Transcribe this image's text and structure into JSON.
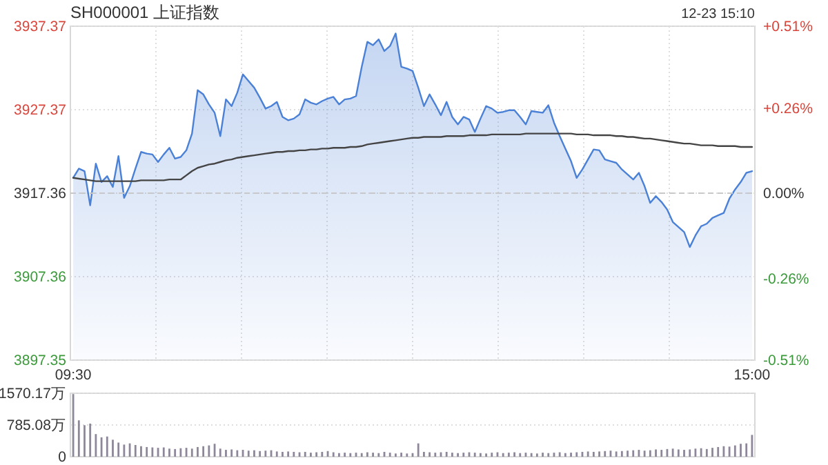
{
  "chart_data": [
    {
      "type": "area",
      "title": "SH000001 上证指数",
      "annotations": [
        "12-23 15:10"
      ],
      "categories": [
        "09:30",
        null,
        null,
        null,
        null,
        null,
        null,
        null,
        null,
        null,
        null,
        null,
        null,
        null,
        null,
        null,
        null,
        null,
        null,
        null,
        null,
        null,
        null,
        null,
        null,
        null,
        null,
        null,
        null,
        null,
        null,
        null,
        null,
        null,
        null,
        null,
        null,
        null,
        null,
        null,
        null,
        null,
        null,
        null,
        null,
        null,
        null,
        null,
        null,
        null,
        null,
        null,
        null,
        null,
        null,
        null,
        null,
        null,
        null,
        null,
        null,
        null,
        null,
        null,
        null,
        null,
        null,
        null,
        null,
        null,
        null,
        null,
        null,
        null,
        null,
        null,
        null,
        null,
        null,
        null,
        null,
        null,
        null,
        null,
        null,
        null,
        null,
        null,
        null,
        null,
        null,
        null,
        null,
        null,
        null,
        null,
        null,
        null,
        null,
        null,
        null,
        null,
        null,
        null,
        null,
        null,
        null,
        null,
        null,
        null,
        null,
        null,
        null,
        null,
        null,
        null,
        null,
        null,
        null,
        null,
        "15:00"
      ],
      "ylim": [
        3897.35,
        3937.37
      ],
      "yticks": [
        3897.35,
        3907.36,
        3917.36,
        3927.37,
        3937.37
      ],
      "y2lim": [
        -0.51,
        0.51
      ],
      "y2ticks": [
        {
          "value": -0.51,
          "label": "-0.51%"
        },
        {
          "value": -0.26,
          "label": "-0.26%"
        },
        {
          "value": 0,
          "label": "0.00%"
        },
        {
          "value": 0.26,
          "label": "+0.26%"
        },
        {
          "value": 0.51,
          "label": "+0.51%"
        }
      ],
      "grid": true,
      "ref_lines": [
        {
          "axis": "y",
          "value": 3917.36,
          "color": "#c8c8c8",
          "line_style": "dashed"
        }
      ],
      "series": [
        {
          "color": "#4a80d6",
          "values": [
            3919.2,
            3920.3,
            3920.0,
            3915.9,
            3920.9,
            3918.7,
            3919.4,
            3918.1,
            3921.8,
            3916.8,
            3918.2,
            3920.3,
            3922.3,
            3922.1,
            3922.0,
            3921.1,
            3922.0,
            3922.8,
            3921.5,
            3921.7,
            3922.5,
            3924.5,
            3929.7,
            3929.2,
            3928.0,
            3927.0,
            3924.2,
            3928.6,
            3927.8,
            3929.4,
            3931.6,
            3930.8,
            3930.0,
            3928.8,
            3927.5,
            3927.8,
            3928.3,
            3926.5,
            3926.1,
            3926.3,
            3926.8,
            3928.6,
            3928.2,
            3928.0,
            3928.4,
            3928.7,
            3928.9,
            3928.0,
            3928.6,
            3928.7,
            3929.0,
            3932.5,
            3935.5,
            3935.1,
            3935.8,
            3934.4,
            3935.0,
            3936.5,
            3932.5,
            3932.3,
            3932.0,
            3930.0,
            3927.8,
            3929.2,
            3928.0,
            3926.7,
            3928.3,
            3926.5,
            3925.6,
            3926.5,
            3926.2,
            3924.7,
            3926.3,
            3927.8,
            3927.5,
            3927.0,
            3927.1,
            3927.3,
            3927.3,
            3926.5,
            3925.6,
            3927.2,
            3927.1,
            3927.0,
            3927.9,
            3925.8,
            3924.2,
            3922.7,
            3921.2,
            3919.2,
            3920.2,
            3921.4,
            3922.6,
            3922.5,
            3921.4,
            3921.2,
            3921.0,
            3920.2,
            3919.6,
            3919.0,
            3919.8,
            3918.2,
            3916.2,
            3917.0,
            3916.3,
            3915.4,
            3913.9,
            3913.3,
            3912.7,
            3910.9,
            3912.3,
            3913.4,
            3913.7,
            3914.4,
            3914.7,
            3915.0,
            3916.7,
            3917.8,
            3918.7,
            3919.8,
            3920.0
          ]
        },
        {
          "type": "line",
          "color": "#444444",
          "values": [
            3919.2,
            3919.1,
            3919.0,
            3918.9,
            3918.8,
            3918.8,
            3918.8,
            3918.8,
            3918.8,
            3918.8,
            3918.8,
            3918.8,
            3918.9,
            3918.9,
            3918.9,
            3918.9,
            3918.9,
            3919.0,
            3919.0,
            3919.0,
            3919.5,
            3920.0,
            3920.4,
            3920.6,
            3920.8,
            3920.9,
            3921.1,
            3921.3,
            3921.4,
            3921.6,
            3921.7,
            3921.8,
            3921.9,
            3922.0,
            3922.1,
            3922.2,
            3922.3,
            3922.3,
            3922.4,
            3922.4,
            3922.5,
            3922.5,
            3922.6,
            3922.6,
            3922.7,
            3922.7,
            3922.8,
            3922.8,
            3922.8,
            3922.9,
            3922.9,
            3923.0,
            3923.2,
            3923.3,
            3923.4,
            3923.5,
            3923.6,
            3923.7,
            3923.8,
            3923.9,
            3924.0,
            3924.0,
            3924.1,
            3924.1,
            3924.1,
            3924.1,
            3924.2,
            3924.2,
            3924.2,
            3924.2,
            3924.3,
            3924.3,
            3924.3,
            3924.3,
            3924.4,
            3924.4,
            3924.4,
            3924.4,
            3924.4,
            3924.4,
            3924.5,
            3924.5,
            3924.5,
            3924.5,
            3924.5,
            3924.5,
            3924.5,
            3924.5,
            3924.5,
            3924.4,
            3924.4,
            3924.4,
            3924.3,
            3924.3,
            3924.3,
            3924.3,
            3924.2,
            3924.2,
            3924.1,
            3924.1,
            3924.0,
            3923.9,
            3923.9,
            3923.8,
            3923.7,
            3923.6,
            3923.5,
            3923.4,
            3923.3,
            3923.3,
            3923.2,
            3923.1,
            3923.1,
            3923.1,
            3923.0,
            3923.0,
            3923.0,
            3923.0,
            3922.9,
            3922.9,
            3922.9
          ]
        }
      ]
    },
    {
      "type": "bar",
      "tick_labels": "y",
      "categories": [
        null,
        null,
        null,
        null,
        null,
        null,
        null,
        null,
        null,
        null,
        null,
        null,
        null,
        null,
        null,
        null,
        null,
        null,
        null,
        null,
        null,
        null,
        null,
        null,
        null,
        null,
        null,
        null,
        null,
        null,
        null,
        null,
        null,
        null,
        null,
        null,
        null,
        null,
        null,
        null,
        null,
        null,
        null,
        null,
        null,
        null,
        null,
        null,
        null,
        null,
        null,
        null,
        null,
        null,
        null,
        null,
        null,
        null,
        null,
        null,
        null,
        null,
        null,
        null,
        null,
        null,
        null,
        null,
        null,
        null,
        null,
        null,
        null,
        null,
        null,
        null,
        null,
        null,
        null,
        null,
        null,
        null,
        null,
        null,
        null,
        null,
        null,
        null,
        null,
        null,
        null,
        null,
        null,
        null,
        null,
        null,
        null,
        null,
        null,
        null,
        null,
        null,
        null,
        null,
        null,
        null,
        null,
        null,
        null,
        null,
        null,
        null,
        null,
        null,
        null,
        null,
        null,
        null,
        null,
        null,
        null
      ],
      "ylim": [
        0,
        1570.17
      ],
      "yticks": [
        0,
        {
          "value": 785.08,
          "label": "785.08万"
        },
        {
          "value": 1570.17,
          "label": "1570.17万"
        }
      ],
      "grid": "y",
      "series": [
        {
          "color": "#8d8799",
          "values": [
            1550,
            900,
            780,
            820,
            560,
            480,
            500,
            420,
            350,
            300,
            330,
            290,
            260,
            240,
            230,
            220,
            230,
            200,
            190,
            210,
            220,
            200,
            240,
            260,
            280,
            320,
            200,
            170,
            180,
            160,
            170,
            150,
            160,
            140,
            150,
            160,
            130,
            120,
            130,
            120,
            110,
            120,
            100,
            110,
            120,
            140,
            110,
            90,
            100,
            90,
            100,
            90,
            110,
            100,
            90,
            120,
            100,
            80,
            100,
            80,
            90,
            330,
            120,
            110,
            100,
            110,
            120,
            100,
            90,
            100,
            110,
            100,
            90,
            80,
            100,
            110,
            90,
            100,
            110,
            90,
            100,
            90,
            80,
            100,
            90,
            100,
            110,
            90,
            100,
            110,
            120,
            130,
            120,
            130,
            140,
            150,
            130,
            140,
            150,
            160,
            170,
            150,
            160,
            180,
            170,
            190,
            200,
            180,
            170,
            180,
            200,
            210,
            190,
            220,
            240,
            260,
            250,
            280,
            320,
            330,
            540
          ]
        }
      ]
    }
  ]
}
